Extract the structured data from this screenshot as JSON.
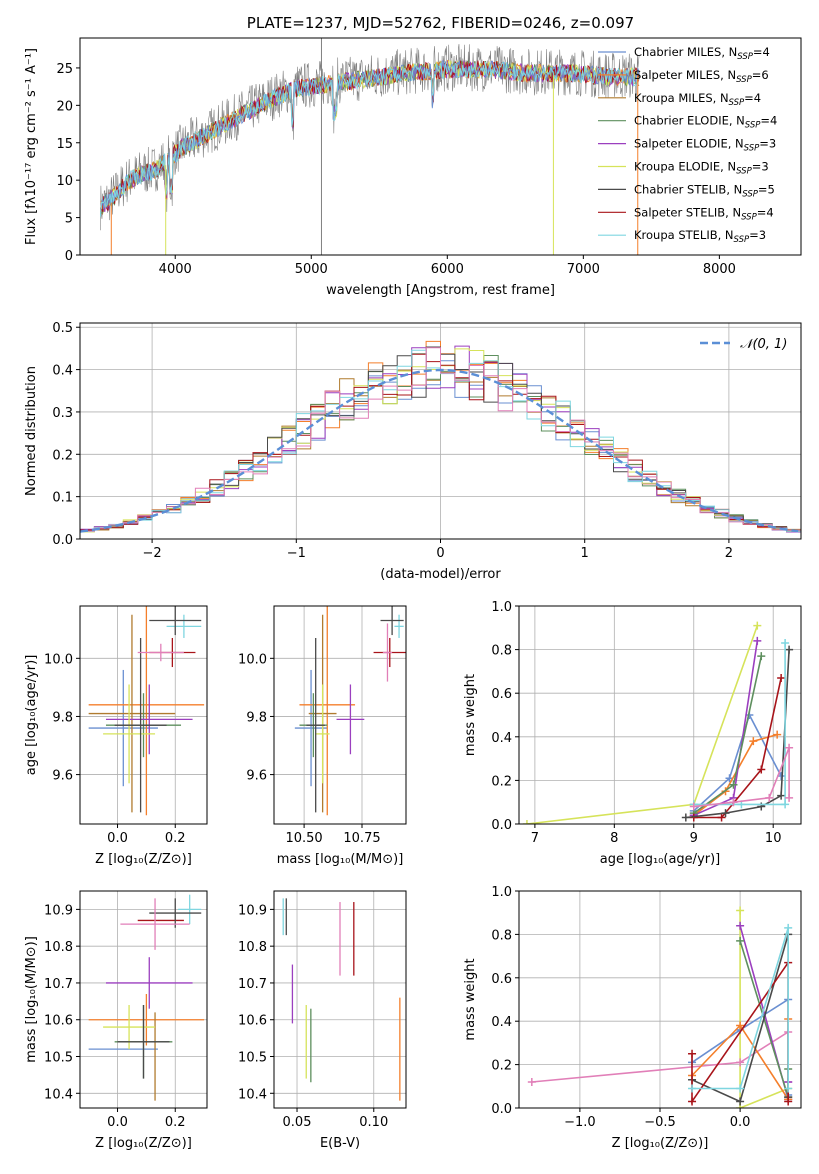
{
  "colors": {
    "chabrier_miles": "#6a8fd1",
    "salpeter_miles": "#f47f2b",
    "kroupa_miles": "#b07b2f",
    "chabrier_elodie": "#5e8f5e",
    "salpeter_elodie": "#9b3fbf",
    "kroupa_elodie": "#d6e35a",
    "chabrier_stelib": "#4a4a4a",
    "salpeter_stelib": "#a8141a",
    "kroupa_stelib": "#7fd6e0",
    "pink": "#e17fb8",
    "gray": "#808080",
    "normal_curve": "#5b8fd6"
  },
  "chart_data": [
    {
      "id": "spectrum",
      "type": "line",
      "title": "PLATE=1237, MJD=52762, FIBERID=0246, z=0.097",
      "xlabel": "wavelength [Angstrom, rest frame]",
      "ylabel": "Flux [fλ10⁻¹⁷ erg cm⁻² s⁻¹ A⁻¹]",
      "xlim": [
        3300,
        8600
      ],
      "ylim": [
        0,
        29
      ],
      "xticks": [
        4000,
        5000,
        6000,
        7000,
        8000
      ],
      "yticks": [
        0,
        5,
        10,
        15,
        20,
        25
      ],
      "grid": false,
      "legend_position": "top-right",
      "legend": [
        {
          "label": "Chabrier MILES, N",
          "sub": "SSP",
          "value": "=4",
          "color": "#6a8fd1"
        },
        {
          "label": "Salpeter MILES, N",
          "sub": "SSP",
          "value": "=6",
          "color": "#f47f2b"
        },
        {
          "label": "Kroupa MILES, N",
          "sub": "SSP",
          "value": "=4",
          "color": "#b07b2f"
        },
        {
          "label": "Chabrier ELODIE, N",
          "sub": "SSP",
          "value": "=4",
          "color": "#5e8f5e"
        },
        {
          "label": "Salpeter ELODIE, N",
          "sub": "SSP",
          "value": "=3",
          "color": "#9b3fbf"
        },
        {
          "label": "Kroupa ELODIE, N",
          "sub": "SSP",
          "value": "=3",
          "color": "#d6e35a"
        },
        {
          "label": "Chabrier STELIB, N",
          "sub": "SSP",
          "value": "=5",
          "color": "#4a4a4a"
        },
        {
          "label": "Salpeter STELIB, N",
          "sub": "SSP",
          "value": "=4",
          "color": "#a8141a"
        },
        {
          "label": "Kroupa STELIB, N",
          "sub": "SSP",
          "value": "=3",
          "color": "#7fd6e0"
        }
      ],
      "continuum": [
        [
          3450,
          6.5
        ],
        [
          3550,
          8
        ],
        [
          3650,
          10
        ],
        [
          3750,
          11
        ],
        [
          3850,
          11.5
        ],
        [
          3950,
          13
        ],
        [
          4050,
          14.5
        ],
        [
          4150,
          15.5
        ],
        [
          4250,
          16.5
        ],
        [
          4350,
          17.5
        ],
        [
          4500,
          19
        ],
        [
          4700,
          21
        ],
        [
          4900,
          22.5
        ],
        [
          5100,
          23
        ],
        [
          5300,
          23.5
        ],
        [
          5500,
          24
        ],
        [
          5700,
          24.5
        ],
        [
          6000,
          25
        ],
        [
          6300,
          25
        ],
        [
          6600,
          24.5
        ],
        [
          6900,
          24.5
        ],
        [
          7200,
          24
        ],
        [
          7400,
          24
        ]
      ],
      "spikes": [
        [
          5075,
          29
        ],
        [
          7400,
          0
        ]
      ]
    },
    {
      "id": "residuals",
      "type": "line",
      "xlabel": "(data-model)/error",
      "ylabel": "Normed distribution",
      "xlim": [
        -2.5,
        2.5
      ],
      "ylim": [
        0,
        0.51
      ],
      "xticks": [
        -2,
        -1,
        0,
        1,
        2
      ],
      "xtick_labels": [
        "−2",
        "−1",
        "0",
        "1",
        "2"
      ],
      "yticks": [
        0.0,
        0.1,
        0.2,
        0.3,
        0.4,
        0.5
      ],
      "ytick_labels": [
        "0.0",
        "0.1",
        "0.2",
        "0.3",
        "0.4",
        "0.5"
      ],
      "grid": true,
      "legend_position": "top-right",
      "legend": [
        {
          "label": "𝒩(0, 1)",
          "color": "#5b8fd6"
        }
      ],
      "normal_curve": {
        "mean": 0,
        "std": 1
      }
    },
    {
      "id": "age_vs_z",
      "type": "scatter",
      "xlabel": "Z [log₁₀(Z/Z⊙)]",
      "ylabel": "age  [log₁₀(age/yr)]",
      "xlim": [
        -0.13,
        0.31
      ],
      "ylim": [
        9.43,
        10.18
      ],
      "xticks": [
        0.0,
        0.2
      ],
      "xtick_labels": [
        "0.0",
        "0.2"
      ],
      "yticks": [
        9.6,
        9.8,
        10.0
      ],
      "yticks_labels": [
        "9.6",
        "9.8",
        "10.0"
      ],
      "grid": true,
      "points": [
        {
          "x": 0.02,
          "y": 9.76,
          "xerr": 0.12,
          "yerr": 0.2,
          "color": "#6a8fd1"
        },
        {
          "x": 0.1,
          "y": 9.84,
          "xerr": 0.2,
          "yerr": 0.38,
          "color": "#f47f2b"
        },
        {
          "x": 0.05,
          "y": 9.81,
          "xerr": 0.15,
          "yerr": 0.34,
          "color": "#b07b2f"
        },
        {
          "x": 0.09,
          "y": 9.77,
          "xerr": 0.13,
          "yerr": 0.11,
          "color": "#5e8f5e"
        },
        {
          "x": 0.11,
          "y": 9.79,
          "xerr": 0.15,
          "yerr": 0.12,
          "color": "#9b3fbf"
        },
        {
          "x": 0.04,
          "y": 9.74,
          "xerr": 0.09,
          "yerr": 0.17,
          "color": "#d6e35a"
        },
        {
          "x": 0.08,
          "y": 9.77,
          "xerr": 0.09,
          "yerr": 0.3,
          "color": "#4a4a4a"
        },
        {
          "x": 0.19,
          "y": 10.02,
          "xerr": 0.08,
          "yerr": 0.05,
          "color": "#a8141a"
        },
        {
          "x": 0.23,
          "y": 10.11,
          "xerr": 0.06,
          "yerr": 0.04,
          "color": "#7fd6e0"
        },
        {
          "x": 0.2,
          "y": 10.13,
          "xerr": 0.09,
          "yerr": 0.05,
          "color": "#4a4a4a"
        },
        {
          "x": 0.15,
          "y": 10.02,
          "xerr": 0.08,
          "yerr": 0.03,
          "color": "#e17fb8"
        }
      ]
    },
    {
      "id": "age_vs_mass",
      "type": "scatter",
      "xlabel": "mass [log₁₀(M/M⊙)]",
      "ylabel": "",
      "xlim": [
        10.37,
        10.94
      ],
      "ylim": [
        9.43,
        10.18
      ],
      "xticks": [
        10.5,
        10.75
      ],
      "xtick_labels": [
        "10.50",
        "10.75"
      ],
      "yticks": [
        9.6,
        9.8,
        10.0
      ],
      "yticks_labels": [
        "9.6",
        "9.8",
        "10.0"
      ],
      "grid": true,
      "points": [
        {
          "x": 10.53,
          "y": 9.76,
          "xerr": 0.07,
          "yerr": 0.2,
          "color": "#6a8fd1"
        },
        {
          "x": 10.6,
          "y": 9.84,
          "xerr": 0.12,
          "yerr": 0.38,
          "color": "#f47f2b"
        },
        {
          "x": 10.58,
          "y": 9.81,
          "xerr": 0.06,
          "yerr": 0.34,
          "color": "#b07b2f"
        },
        {
          "x": 10.54,
          "y": 9.77,
          "xerr": 0.06,
          "yerr": 0.11,
          "color": "#5e8f5e"
        },
        {
          "x": 10.7,
          "y": 9.79,
          "xerr": 0.06,
          "yerr": 0.12,
          "color": "#9b3fbf"
        },
        {
          "x": 10.58,
          "y": 9.74,
          "xerr": 0.03,
          "yerr": 0.17,
          "color": "#d6e35a"
        },
        {
          "x": 10.55,
          "y": 9.77,
          "xerr": 0.04,
          "yerr": 0.3,
          "color": "#4a4a4a"
        },
        {
          "x": 10.87,
          "y": 10.02,
          "xerr": 0.07,
          "yerr": 0.05,
          "color": "#a8141a"
        },
        {
          "x": 10.91,
          "y": 10.11,
          "xerr": 0.02,
          "yerr": 0.04,
          "color": "#7fd6e0"
        },
        {
          "x": 10.88,
          "y": 10.13,
          "xerr": 0.05,
          "yerr": 0.05,
          "color": "#4a4a4a"
        },
        {
          "x": 10.86,
          "y": 10.02,
          "xerr": 0.02,
          "yerr": 0.1,
          "color": "#e17fb8"
        }
      ]
    },
    {
      "id": "weight_vs_age",
      "type": "line",
      "xlabel": "age  [log₁₀(age/yr)]",
      "ylabel": "mass weight",
      "xlim": [
        6.8,
        10.35
      ],
      "ylim": [
        0,
        1
      ],
      "xticks": [
        7,
        8,
        9,
        10
      ],
      "xtick_labels": [
        "7",
        "8",
        "9",
        "10"
      ],
      "yticks": [
        0.0,
        0.2,
        0.4,
        0.6,
        0.8,
        1.0
      ],
      "ytick_labels": [
        "0.0",
        "0.2",
        "0.4",
        "0.6",
        "0.8",
        "1.0"
      ],
      "grid": true,
      "series": [
        {
          "color": "#d6e35a",
          "x": [
            6.9,
            9.0,
            9.8
          ],
          "y": [
            0.0,
            0.09,
            0.91
          ]
        },
        {
          "color": "#6a8fd1",
          "x": [
            9.0,
            9.45,
            9.7,
            10.1
          ],
          "y": [
            0.06,
            0.21,
            0.5,
            0.22
          ]
        },
        {
          "color": "#f47f2b",
          "x": [
            9.0,
            9.4,
            9.75,
            10.05
          ],
          "y": [
            0.04,
            0.15,
            0.38,
            0.41
          ]
        },
        {
          "color": "#9b3fbf",
          "x": [
            9.0,
            9.5,
            9.8
          ],
          "y": [
            0.04,
            0.12,
            0.84
          ]
        },
        {
          "color": "#5e8f5e",
          "x": [
            9.0,
            9.5,
            9.85
          ],
          "y": [
            0.05,
            0.18,
            0.77
          ]
        },
        {
          "color": "#a8141a",
          "x": [
            9.0,
            9.35,
            9.85,
            10.1
          ],
          "y": [
            0.03,
            0.03,
            0.25,
            0.67
          ]
        },
        {
          "color": "#4a4a4a",
          "x": [
            8.9,
            9.4,
            9.85,
            10.1,
            10.2
          ],
          "y": [
            0.03,
            0.05,
            0.08,
            0.13,
            0.8
          ]
        },
        {
          "color": "#7fd6e0",
          "x": [
            9.0,
            9.6,
            10.15,
            10.15
          ],
          "y": [
            0.09,
            0.09,
            0.09,
            0.83
          ]
        },
        {
          "color": "#e17fb8",
          "x": [
            9.0,
            9.5,
            9.95,
            10.2,
            10.2
          ],
          "y": [
            0.08,
            0.1,
            0.12,
            0.35,
            0.12
          ]
        }
      ]
    },
    {
      "id": "mass_vs_z",
      "type": "scatter",
      "xlabel": "Z [log₁₀(Z/Z⊙)]",
      "ylabel": "mass [log₁₀(M/M⊙)]",
      "xlim": [
        -0.13,
        0.31
      ],
      "ylim": [
        10.36,
        10.95
      ],
      "xticks": [
        0.0,
        0.2
      ],
      "xtick_labels": [
        "0.0",
        "0.2"
      ],
      "yticks": [
        10.4,
        10.5,
        10.6,
        10.7,
        10.8,
        10.9
      ],
      "ytick_labels": [
        "10.4",
        "10.5",
        "10.6",
        "10.7",
        "10.8",
        "10.9"
      ],
      "grid": true,
      "points": [
        {
          "x": 0.02,
          "y": 10.52,
          "xerr": 0.12,
          "yerr": 0.0,
          "color": "#6a8fd1"
        },
        {
          "x": 0.1,
          "y": 10.6,
          "xerr": 0.2,
          "yerr": 0.07,
          "color": "#f47f2b"
        },
        {
          "x": 0.13,
          "y": 10.5,
          "xerr": 0.0,
          "yerr": 0.12,
          "color": "#b07b2f"
        },
        {
          "x": 0.09,
          "y": 10.54,
          "xerr": 0.1,
          "yerr": 0.1,
          "color": "#5e8f5e"
        },
        {
          "x": 0.11,
          "y": 10.7,
          "xerr": 0.15,
          "yerr": 0.07,
          "color": "#9b3fbf"
        },
        {
          "x": 0.04,
          "y": 10.58,
          "xerr": 0.09,
          "yerr": 0.06,
          "color": "#d6e35a"
        },
        {
          "x": 0.09,
          "y": 10.54,
          "xerr": 0.09,
          "yerr": 0.1,
          "color": "#4a4a4a"
        },
        {
          "x": 0.15,
          "y": 10.87,
          "xerr": 0.08,
          "yerr": 0.0,
          "color": "#a8141a"
        },
        {
          "x": 0.25,
          "y": 10.9,
          "xerr": 0.04,
          "yerr": 0.04,
          "color": "#7fd6e0"
        },
        {
          "x": 0.2,
          "y": 10.89,
          "xerr": 0.09,
          "yerr": 0.04,
          "color": "#4a4a4a"
        },
        {
          "x": 0.13,
          "y": 10.86,
          "xerr": 0.12,
          "yerr": 0.07,
          "color": "#e17fb8"
        }
      ]
    },
    {
      "id": "ebv",
      "type": "scatter",
      "xlabel": "E(B-V)",
      "ylabel": "",
      "xlim": [
        0.035,
        0.121
      ],
      "ylim": [
        10.36,
        10.95
      ],
      "xticks": [
        0.05,
        0.1
      ],
      "xtick_labels": [
        "0.05",
        "0.10"
      ],
      "yticks": [
        10.4,
        10.5,
        10.6,
        10.7,
        10.8,
        10.9
      ],
      "ytick_labels": [
        "10.4",
        "10.5",
        "10.6",
        "10.7",
        "10.8",
        "10.9"
      ],
      "grid": true,
      "points": [
        {
          "x": 0.041,
          "y": 10.88,
          "xerr": 0.0,
          "yerr": 0.05,
          "color": "#7fd6e0"
        },
        {
          "x": 0.043,
          "y": 10.88,
          "xerr": 0.0,
          "yerr": 0.05,
          "color": "#4a4a4a"
        },
        {
          "x": 0.047,
          "y": 10.67,
          "xerr": 0.0,
          "yerr": 0.08,
          "color": "#9b3fbf"
        },
        {
          "x": 0.056,
          "y": 10.54,
          "xerr": 0.0,
          "yerr": 0.1,
          "color": "#d6e35a"
        },
        {
          "x": 0.059,
          "y": 10.53,
          "xerr": 0.0,
          "yerr": 0.1,
          "color": "#5e8f5e"
        },
        {
          "x": 0.078,
          "y": 10.82,
          "xerr": 0.0,
          "yerr": 0.1,
          "color": "#e17fb8"
        },
        {
          "x": 0.087,
          "y": 10.82,
          "xerr": 0.0,
          "yerr": 0.1,
          "color": "#a8141a"
        },
        {
          "x": 0.117,
          "y": 10.52,
          "xerr": 0.0,
          "yerr": 0.14,
          "color": "#f47f2b"
        }
      ]
    },
    {
      "id": "weight_vs_z",
      "type": "line",
      "xlabel": "Z [log₁₀(Z/Z⊙)]",
      "ylabel": "mass weight",
      "xlim": [
        -1.38,
        0.38
      ],
      "ylim": [
        0,
        1
      ],
      "xticks": [
        -1.0,
        -0.5,
        0.0
      ],
      "xtick_labels": [
        "−1.0",
        "−0.5",
        "0.0"
      ],
      "yticks": [
        0.0,
        0.2,
        0.4,
        0.6,
        0.8,
        1.0
      ],
      "ytick_labels": [
        "0.0",
        "0.2",
        "0.4",
        "0.6",
        "0.8",
        "1.0"
      ],
      "grid": true,
      "series": [
        {
          "color": "#d6e35a",
          "x": [
            0.0,
            0.0,
            0.3
          ],
          "y": [
            0.91,
            0.0,
            0.09
          ]
        },
        {
          "color": "#e17fb8",
          "x": [
            -1.3,
            0.0,
            0.3,
            0.3
          ],
          "y": [
            0.12,
            0.21,
            0.35,
            0.12
          ]
        },
        {
          "color": "#9b3fbf",
          "x": [
            0.0,
            0.3,
            0.3
          ],
          "y": [
            0.84,
            0.04,
            0.12
          ]
        },
        {
          "color": "#5e8f5e",
          "x": [
            0.0,
            0.3,
            0.3
          ],
          "y": [
            0.77,
            0.05,
            0.18
          ]
        },
        {
          "color": "#6a8fd1",
          "x": [
            -0.3,
            0.0,
            0.3,
            0.3
          ],
          "y": [
            0.21,
            0.36,
            0.5,
            0.06
          ]
        },
        {
          "color": "#f47f2b",
          "x": [
            -0.3,
            0.0,
            0.3,
            0.3
          ],
          "y": [
            0.15,
            0.38,
            0.04,
            0.41
          ]
        },
        {
          "color": "#4a4a4a",
          "x": [
            -0.3,
            0.0,
            0.3,
            0.3
          ],
          "y": [
            0.13,
            0.03,
            0.8,
            0.05
          ]
        },
        {
          "color": "#a8141a",
          "x": [
            -0.3,
            -0.3,
            0.3,
            0.3
          ],
          "y": [
            0.25,
            0.03,
            0.67,
            0.03
          ]
        },
        {
          "color": "#7fd6e0",
          "x": [
            -0.3,
            0.0,
            0.3,
            0.3
          ],
          "y": [
            0.09,
            0.09,
            0.83,
            0.09
          ]
        }
      ]
    }
  ]
}
